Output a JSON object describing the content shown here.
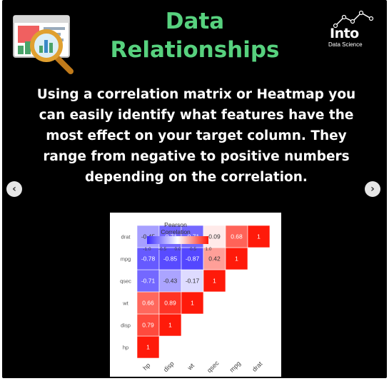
{
  "header": {
    "title_line1": "Data",
    "title_line2": "Relationships",
    "brand_name": "Into",
    "brand_subtitle": "Data Science",
    "logo_icon": "magnifier-chart-icon",
    "accent_color": "#57d17e"
  },
  "body": {
    "paragraph": "Using a correlation matrix or Heatmap you can easily identify what features have the most effect on your target column. They range from negative to positive numbers depending on the correlation."
  },
  "nav": {
    "prev_icon": "chevron-left-icon",
    "next_icon": "chevron-right-icon"
  },
  "chart_data": {
    "type": "heatmap",
    "variables": [
      "hp",
      "disp",
      "wt",
      "qsec",
      "mpg",
      "drat"
    ],
    "matrix": [
      [
        1,
        0.79,
        0.66,
        -0.71,
        -0.78,
        -0.45
      ],
      [
        null,
        1,
        0.89,
        -0.43,
        -0.85,
        -0.71
      ],
      [
        null,
        null,
        1,
        -0.17,
        -0.87,
        -0.71
      ],
      [
        null,
        null,
        null,
        1,
        0.42,
        0.09
      ],
      [
        null,
        null,
        null,
        null,
        1,
        0.68
      ],
      [
        null,
        null,
        null,
        null,
        null,
        1
      ]
    ],
    "legend_title_line1": "Pearson",
    "legend_title_line2": "Correlation",
    "legend_ticks": [
      "-1.0",
      "-0.5",
      "0.0",
      "0.5",
      "1.0"
    ],
    "value_range": [
      -1,
      1
    ],
    "colors": {
      "low": "#3b2bff",
      "mid": "#ffffff",
      "high": "#ff1a0a"
    }
  }
}
